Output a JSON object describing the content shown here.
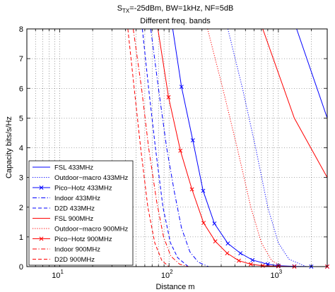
{
  "chart_data": {
    "type": "line",
    "title_prefix": "S",
    "title_subscript": "TX",
    "title_rest": "=-25dBm, BW=1kHz, NF=5dB",
    "subtitle": "Different freq. bands",
    "xlabel": "Distance m",
    "ylabel": "Capacity bits/s/Hz",
    "xscale": "log",
    "xlim": [
      5,
      2800
    ],
    "ylim": [
      0,
      8
    ],
    "x_ticks": [
      {
        "value": 10,
        "base": "10",
        "exp": "1"
      },
      {
        "value": 100,
        "base": "10",
        "exp": "2"
      },
      {
        "value": 1000,
        "base": "10",
        "exp": "3"
      }
    ],
    "y_ticks": [
      0,
      1,
      2,
      3,
      4,
      5,
      6,
      7,
      8
    ],
    "grid": true,
    "legend_position": "bottom-left",
    "colors": {
      "blue": "#0000ff",
      "red": "#ff0000"
    },
    "series": [
      {
        "name": "FSL 433MHz",
        "color": "#0000ff",
        "style": "solid",
        "marker": "none",
        "points": [
          [
            1470,
            8
          ],
          [
            2800,
            5
          ]
        ]
      },
      {
        "name": "Outdoor−macro 433MHz",
        "color": "#0000ff",
        "style": "dotted",
        "marker": "none",
        "points": [
          [
            345,
            8
          ],
          [
            470,
            6
          ],
          [
            620,
            4
          ],
          [
            800,
            2
          ],
          [
            1000,
            0.8
          ],
          [
            1250,
            0.25
          ],
          [
            1800,
            0
          ]
        ]
      },
      {
        "name": "Pico−Hotz 433MHz",
        "color": "#0000ff",
        "style": "solid",
        "marker": "x",
        "points": [
          [
            108,
            8
          ],
          [
            130,
            6.05
          ],
          [
            165,
            4.25
          ],
          [
            205,
            2.55
          ],
          [
            260,
            1.45
          ],
          [
            345,
            0.78
          ],
          [
            450,
            0.45
          ],
          [
            580,
            0.22
          ],
          [
            800,
            0.08
          ],
          [
            1000,
            0.03
          ],
          [
            1400,
            0.01
          ],
          [
            2000,
            0
          ],
          [
            2800,
            0
          ]
        ]
      },
      {
        "name": "Indoor 433MHz",
        "color": "#0000ff",
        "style": "dashdot",
        "marker": "none",
        "points": [
          [
            68,
            8
          ],
          [
            80,
            6
          ],
          [
            95,
            4
          ],
          [
            112,
            2.5
          ],
          [
            130,
            1.3
          ],
          [
            155,
            0.5
          ],
          [
            185,
            0.15
          ],
          [
            230,
            0
          ]
        ]
      },
      {
        "name": "D2D 433MHz",
        "color": "#0000ff",
        "style": "dashed",
        "marker": "none",
        "points": [
          [
            57,
            8
          ],
          [
            65,
            6
          ],
          [
            75,
            4
          ],
          [
            88,
            2
          ],
          [
            103,
            0.8
          ],
          [
            120,
            0.3
          ],
          [
            150,
            0
          ]
        ]
      },
      {
        "name": "FSL 900MHz",
        "color": "#ff0000",
        "style": "solid",
        "marker": "none",
        "points": [
          [
            720,
            8
          ],
          [
            1400,
            5
          ],
          [
            2800,
            3
          ]
        ]
      },
      {
        "name": "Outdoor−macro 900MHz",
        "color": "#ff0000",
        "style": "dotted",
        "marker": "none",
        "points": [
          [
            225,
            8
          ],
          [
            310,
            6
          ],
          [
            420,
            4
          ],
          [
            560,
            2
          ],
          [
            700,
            0.8
          ],
          [
            870,
            0.2
          ],
          [
            1100,
            0
          ]
        ]
      },
      {
        "name": "Pico−Hotz 900MHz",
        "color": "#ff0000",
        "style": "solid",
        "marker": "x",
        "points": [
          [
            79,
            8
          ],
          [
            99,
            5.7
          ],
          [
            127,
            3.9
          ],
          [
            162,
            2.6
          ],
          [
            207,
            1.47
          ],
          [
            265,
            0.85
          ],
          [
            340,
            0.45
          ],
          [
            435,
            0.2
          ],
          [
            560,
            0.08
          ],
          [
            720,
            0.03
          ],
          [
            1000,
            0.01
          ],
          [
            1400,
            0
          ],
          [
            2800,
            0
          ]
        ]
      },
      {
        "name": "Indoor 900MHz",
        "color": "#ff0000",
        "style": "dashdot",
        "marker": "none",
        "points": [
          [
            47,
            8
          ],
          [
            56,
            6
          ],
          [
            65,
            4
          ],
          [
            77,
            2.2
          ],
          [
            89,
            1
          ],
          [
            104,
            0.35
          ],
          [
            125,
            0.08
          ],
          [
            150,
            0
          ]
        ]
      },
      {
        "name": "D2D 900MHz",
        "color": "#ff0000",
        "style": "dashed",
        "marker": "none",
        "points": [
          [
            42,
            8
          ],
          [
            48,
            6
          ],
          [
            55,
            4
          ],
          [
            64,
            2
          ],
          [
            74,
            0.8
          ],
          [
            86,
            0.2
          ],
          [
            100,
            0
          ]
        ]
      }
    ]
  }
}
